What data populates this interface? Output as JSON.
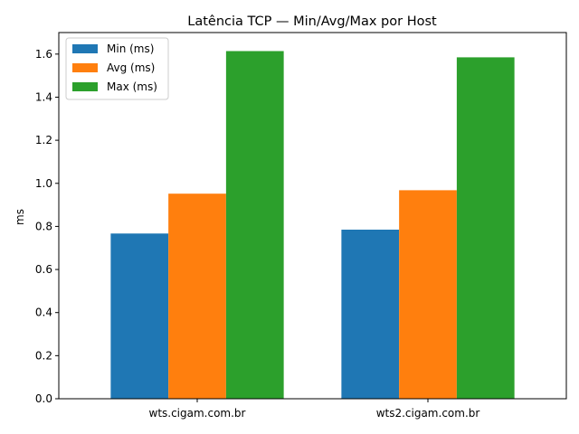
{
  "chart_data": {
    "type": "bar",
    "title": "Latência TCP — Min/Avg/Max por Host",
    "xlabel": "",
    "ylabel": "ms",
    "categories": [
      "wts.cigam.com.br",
      "wts2.cigam.com.br"
    ],
    "series": [
      {
        "name": "Min (ms)",
        "color": "#1f77b4",
        "values": [
          0.767,
          0.785
        ]
      },
      {
        "name": "Avg (ms)",
        "color": "#ff7f0e",
        "values": [
          0.952,
          0.968
        ]
      },
      {
        "name": "Max (ms)",
        "color": "#2ca02c",
        "values": [
          1.614,
          1.585
        ]
      }
    ],
    "ylim": [
      0,
      1.7
    ],
    "yticks": [
      "0.0",
      "0.2",
      "0.4",
      "0.6",
      "0.8",
      "1.0",
      "1.2",
      "1.4",
      "1.6"
    ],
    "grid": false,
    "legend_position": "top-left"
  }
}
